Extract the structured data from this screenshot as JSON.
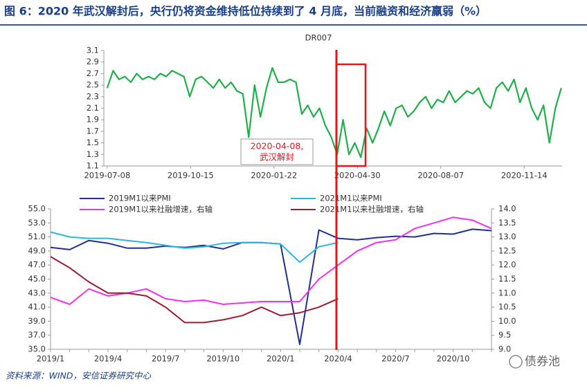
{
  "title": "图 6：2020 年武汉解封后，央行仍将资金维持低位持续到了 4 月底，当前融资和经济羸弱（%）",
  "source": "资料来源：WIND，安信证券研究中心",
  "watermark": "债券池",
  "chart_data": [
    {
      "type": "line",
      "title": "DR007",
      "color": "#1fae4a",
      "x": [
        "2019-07-08",
        "2019-07-15",
        "2019-07-22",
        "2019-07-29",
        "2019-08-05",
        "2019-08-12",
        "2019-08-19",
        "2019-08-26",
        "2019-09-02",
        "2019-09-09",
        "2019-09-16",
        "2019-09-23",
        "2019-09-30",
        "2019-10-07",
        "2019-10-14",
        "2019-10-21",
        "2019-10-28",
        "2019-11-04",
        "2019-11-11",
        "2019-11-18",
        "2019-11-25",
        "2019-12-02",
        "2019-12-09",
        "2019-12-16",
        "2019-12-23",
        "2019-12-30",
        "2020-01-06",
        "2020-01-13",
        "2020-01-20",
        "2020-01-27",
        "2020-02-03",
        "2020-02-10",
        "2020-02-17",
        "2020-02-24",
        "2020-03-02",
        "2020-03-09",
        "2020-03-16",
        "2020-03-23",
        "2020-03-30",
        "2020-04-06",
        "2020-04-13",
        "2020-04-20",
        "2020-04-27",
        "2020-05-04",
        "2020-05-11",
        "2020-05-18",
        "2020-05-25",
        "2020-06-01",
        "2020-06-08",
        "2020-06-15",
        "2020-06-22",
        "2020-06-29",
        "2020-07-06",
        "2020-07-13",
        "2020-07-20",
        "2020-07-27",
        "2020-08-03",
        "2020-08-10",
        "2020-08-17",
        "2020-08-24",
        "2020-08-31",
        "2020-09-07",
        "2020-09-14",
        "2020-09-21",
        "2020-09-28",
        "2020-10-05",
        "2020-10-12",
        "2020-10-19",
        "2020-10-26",
        "2020-11-02",
        "2020-11-09",
        "2020-11-16",
        "2020-11-23",
        "2020-11-30",
        "2020-12-07",
        "2020-12-14",
        "2020-12-21",
        "2020-12-28"
      ],
      "values": [
        2.45,
        2.75,
        2.6,
        2.65,
        2.55,
        2.7,
        2.6,
        2.65,
        2.6,
        2.7,
        2.65,
        2.75,
        2.7,
        2.65,
        2.3,
        2.6,
        2.65,
        2.55,
        2.45,
        2.6,
        2.45,
        2.55,
        2.4,
        2.35,
        1.6,
        2.5,
        1.95,
        2.45,
        2.8,
        2.55,
        2.55,
        2.6,
        2.55,
        2.0,
        2.15,
        1.95,
        2.1,
        1.8,
        1.6,
        1.3,
        1.9,
        1.3,
        1.5,
        1.25,
        1.75,
        1.5,
        1.75,
        2.05,
        1.8,
        2.1,
        2.15,
        1.95,
        2.05,
        2.2,
        2.3,
        2.1,
        2.25,
        2.2,
        2.4,
        2.2,
        2.3,
        2.4,
        2.35,
        2.45,
        2.2,
        2.1,
        2.45,
        2.55,
        2.4,
        2.6,
        2.2,
        2.45,
        2.1,
        1.9,
        2.15,
        1.5,
        2.1,
        2.45
      ],
      "xlim": [
        "2019-07-04",
        "2020-12-29"
      ],
      "xticks": [
        "2019-07-08",
        "2019-10-15",
        "2020-01-22",
        "2020-04-30",
        "2020-08-07",
        "2020-11-14"
      ],
      "ylim": [
        1.1,
        3.1
      ],
      "yticks": [
        1.1,
        1.3,
        1.5,
        1.7,
        1.9,
        2.1,
        2.3,
        2.5,
        2.7,
        2.9,
        3.1
      ],
      "annotation": [
        "2020-04-08,",
        "武汉解封"
      ]
    },
    {
      "type": "line",
      "legend": "top",
      "categories": [
        "2019/1",
        null,
        null,
        "2019/4",
        null,
        null,
        "2019/7",
        null,
        null,
        "2019/10",
        null,
        null,
        "2020/1",
        null,
        null,
        "2020/4",
        null,
        null,
        "2020/7",
        null,
        null,
        "2020/10",
        null,
        null
      ],
      "series": [
        {
          "name": "2019M1以来PMI",
          "color": "#1f2f8c",
          "values": [
            49.5,
            49.2,
            50.5,
            50.1,
            49.4,
            49.4,
            49.7,
            49.5,
            49.8,
            49.3,
            50.2,
            50.2,
            50.0,
            35.7,
            52.0,
            50.8,
            50.6,
            50.9,
            51.1,
            51.0,
            51.5,
            51.4,
            52.1,
            51.9
          ]
        },
        {
          "name": "2021M1以来PMI",
          "color": "#2bb5e0",
          "values": [
            51.7,
            51.0,
            50.8,
            50.8,
            50.5,
            50.2,
            49.8,
            49.4,
            49.6,
            50.1,
            50.2,
            50.2,
            50.0,
            47.4,
            49.6,
            50.2,
            null,
            null,
            null,
            null,
            null,
            null,
            null,
            null
          ]
        },
        {
          "name": "2019M1以来社融增速，右轴",
          "color": "#f030f0",
          "axis": "y2",
          "values": [
            10.85,
            10.6,
            11.15,
            10.9,
            11.0,
            11.15,
            10.8,
            10.7,
            10.75,
            10.6,
            10.65,
            10.7,
            10.7,
            10.7,
            11.5,
            12.0,
            12.5,
            12.8,
            12.9,
            13.3,
            13.5,
            13.7,
            13.6,
            13.3
          ]
        },
        {
          "name": "2021M1以来社融增速，右轴",
          "color": "#9b1b30",
          "axis": "y2",
          "values": [
            12.3,
            11.9,
            11.4,
            11.0,
            11.0,
            10.9,
            10.5,
            9.95,
            9.95,
            10.05,
            10.2,
            10.5,
            10.2,
            10.3,
            10.5,
            10.8,
            null,
            null,
            null,
            null,
            null,
            null,
            null,
            null
          ]
        }
      ],
      "ylim": [
        35,
        55
      ],
      "yticks": [
        {
          "value": 35,
          "label": "35.0"
        },
        {
          "value": 37,
          "label": "37.0"
        },
        {
          "value": 39,
          "label": "39.0"
        },
        {
          "value": 41,
          "label": "41.0"
        },
        {
          "value": 43,
          "label": "43.0"
        },
        {
          "value": 45,
          "label": "45.0"
        },
        {
          "value": 47,
          "label": "47.0"
        },
        {
          "value": 49,
          "label": "49.0"
        },
        {
          "value": 51,
          "label": "51.0"
        },
        {
          "value": 53,
          "label": "53.0"
        },
        {
          "value": 55,
          "label": "55.0"
        }
      ],
      "y2lim": [
        9,
        14
      ],
      "y2ticks": [
        {
          "value": 9,
          "label": "9.0"
        },
        9.5,
        {
          "value": 10,
          "label": "10.0"
        },
        10.5,
        {
          "value": 11,
          "label": "11.0"
        },
        11.5,
        {
          "value": 12,
          "label": "12.0"
        },
        12.5,
        {
          "value": 13,
          "label": "13.0"
        },
        13.5,
        {
          "value": 14,
          "label": "14.0"
        }
      ]
    }
  ]
}
